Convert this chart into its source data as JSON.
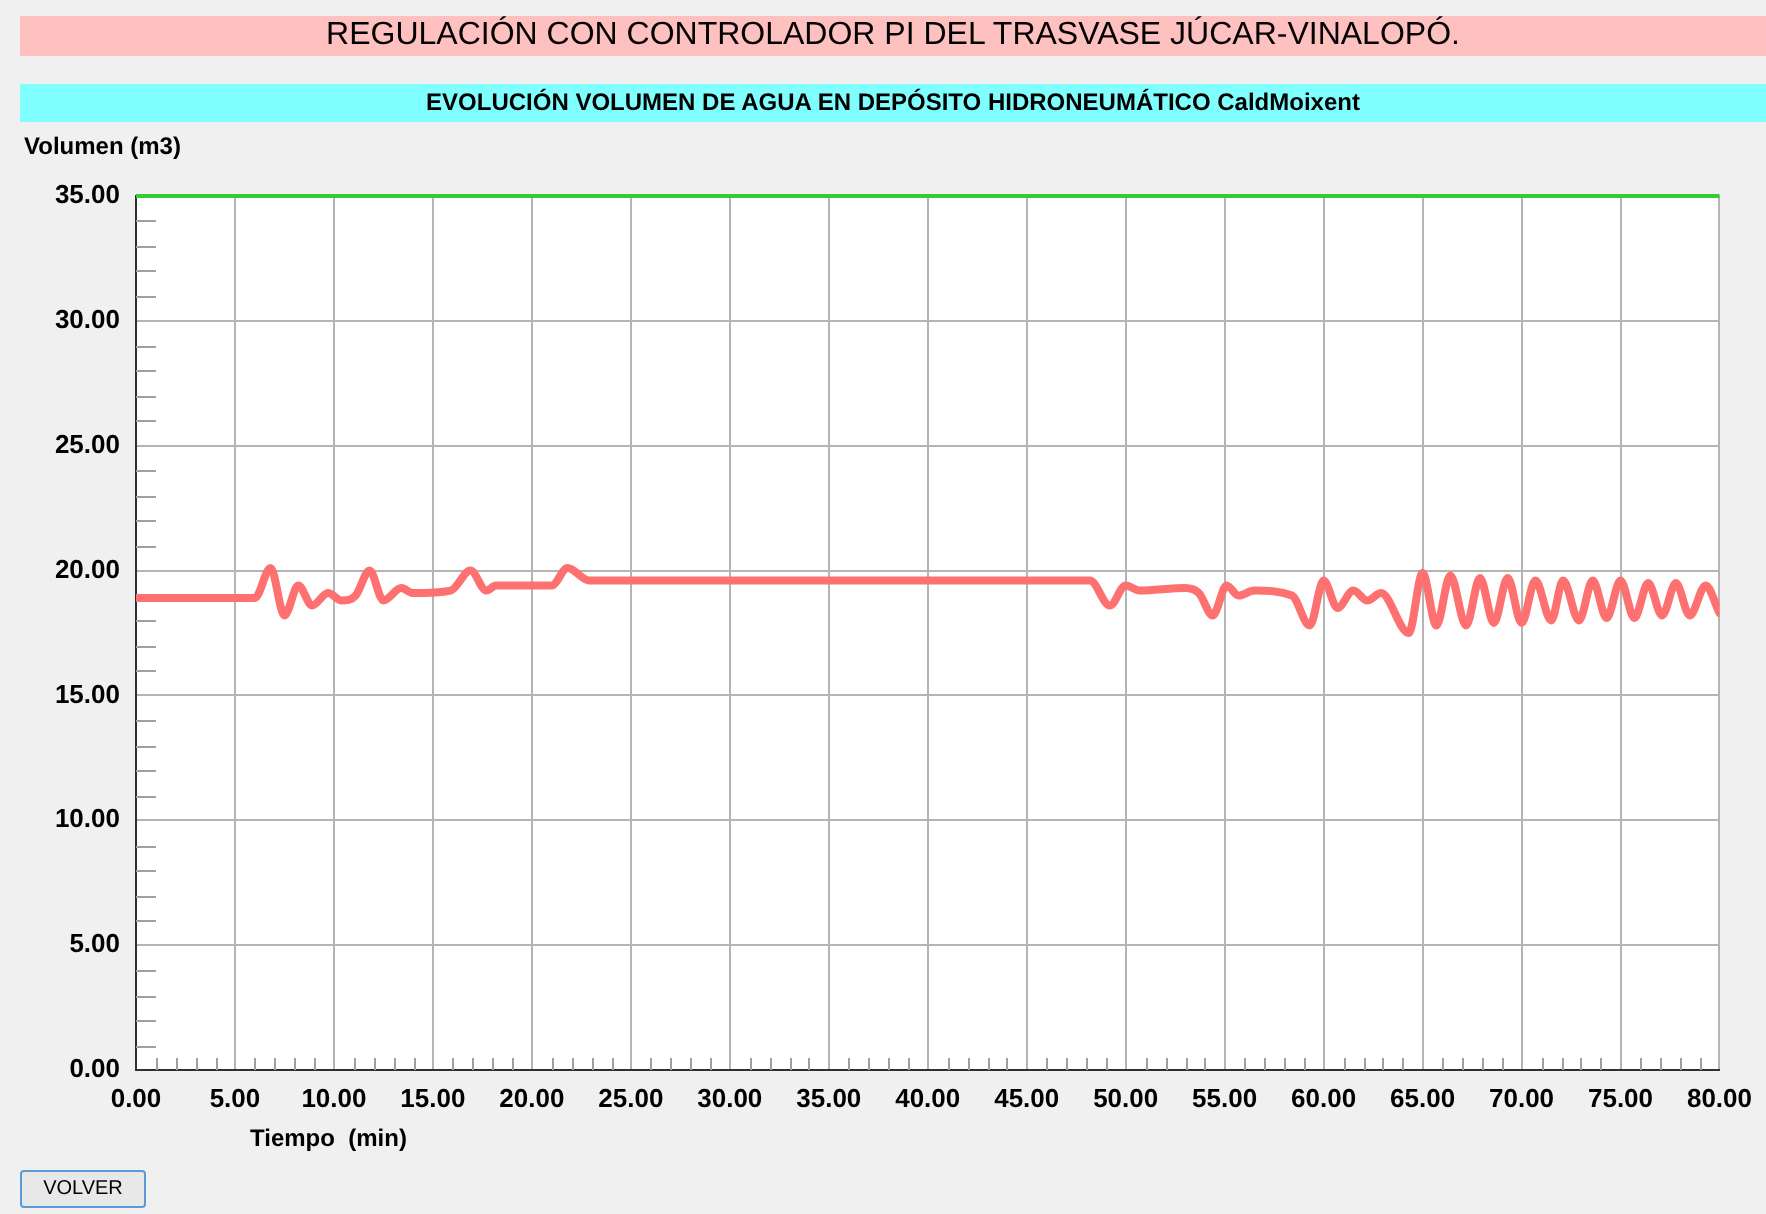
{
  "chart_data": {
    "type": "line",
    "title": "REGULACIÓN CON CONTROLADOR PI DEL TRASVASE JÚCAR-VINALOPÓ.",
    "subtitle": "EVOLUCIÓN VOLUMEN DE AGUA EN DEPÓSITO HIDRONEUMÁTICO CaldMoixent",
    "xlabel": "Tiempo  (min)",
    "ylabel": "Volumen (m3)",
    "annotations": [
      "VOLVER"
    ],
    "x": [
      0,
      6.0,
      6.8,
      7.5,
      8.2,
      8.9,
      9.7,
      10.4,
      11.1,
      11.8,
      12.5,
      13.4,
      14.0,
      15.9,
      16.9,
      17.7,
      18.2,
      21.0,
      21.8,
      22.9,
      48.2,
      49.2,
      50.0,
      50.7,
      53.0,
      53.7,
      54.4,
      55.1,
      55.7,
      56.5,
      58.4,
      59.3,
      60.0,
      60.7,
      61.5,
      62.2,
      62.9,
      64.3,
      65.0,
      65.7,
      66.4,
      67.2,
      67.9,
      68.6,
      69.3,
      70.0,
      70.7,
      71.5,
      72.1,
      72.9,
      73.6,
      74.3,
      75.0,
      75.7,
      76.4,
      77.1,
      77.8,
      78.5,
      79.3,
      80
    ],
    "series": [
      {
        "color": "#ff7070",
        "values": [
          18.9,
          18.9,
          20.1,
          18.2,
          19.4,
          18.6,
          19.1,
          18.8,
          19.0,
          20.0,
          18.8,
          19.3,
          19.1,
          19.2,
          20.0,
          19.2,
          19.4,
          19.4,
          20.1,
          19.6,
          19.6,
          18.6,
          19.4,
          19.2,
          19.3,
          19.1,
          18.2,
          19.4,
          19.0,
          19.2,
          19.0,
          17.8,
          19.6,
          18.5,
          19.2,
          18.8,
          19.1,
          17.5,
          19.9,
          17.8,
          19.8,
          17.8,
          19.7,
          17.9,
          19.7,
          17.9,
          19.6,
          18.0,
          19.6,
          18.0,
          19.6,
          18.1,
          19.6,
          18.1,
          19.5,
          18.2,
          19.5,
          18.2,
          19.4,
          18.3
        ]
      }
    ],
    "xlim": [
      0,
      80
    ],
    "ylim": [
      0,
      35
    ],
    "xticks": [
      {
        "value": 0,
        "label": "0.00"
      },
      {
        "value": 1,
        "label": null
      },
      {
        "value": 2,
        "label": null
      },
      {
        "value": 3,
        "label": null
      },
      {
        "value": 4,
        "label": null
      },
      {
        "value": 5,
        "label": "5.00"
      },
      {
        "value": 6,
        "label": null
      },
      {
        "value": 7,
        "label": null
      },
      {
        "value": 8,
        "label": null
      },
      {
        "value": 9,
        "label": null
      },
      {
        "value": 10,
        "label": "10.00"
      },
      {
        "value": 11,
        "label": null
      },
      {
        "value": 12,
        "label": null
      },
      {
        "value": 13,
        "label": null
      },
      {
        "value": 14,
        "label": null
      },
      {
        "value": 15,
        "label": "15.00"
      },
      {
        "value": 16,
        "label": null
      },
      {
        "value": 17,
        "label": null
      },
      {
        "value": 18,
        "label": null
      },
      {
        "value": 19,
        "label": null
      },
      {
        "value": 20,
        "label": "20.00"
      },
      {
        "value": 21,
        "label": null
      },
      {
        "value": 22,
        "label": null
      },
      {
        "value": 23,
        "label": null
      },
      {
        "value": 24,
        "label": null
      },
      {
        "value": 25,
        "label": "25.00"
      },
      {
        "value": 26,
        "label": null
      },
      {
        "value": 27,
        "label": null
      },
      {
        "value": 28,
        "label": null
      },
      {
        "value": 29,
        "label": null
      },
      {
        "value": 30,
        "label": "30.00"
      },
      {
        "value": 31,
        "label": null
      },
      {
        "value": 32,
        "label": null
      },
      {
        "value": 33,
        "label": null
      },
      {
        "value": 34,
        "label": null
      },
      {
        "value": 35,
        "label": "35.00"
      },
      {
        "value": 36,
        "label": null
      },
      {
        "value": 37,
        "label": null
      },
      {
        "value": 38,
        "label": null
      },
      {
        "value": 39,
        "label": null
      },
      {
        "value": 40,
        "label": "40.00"
      },
      {
        "value": 41,
        "label": null
      },
      {
        "value": 42,
        "label": null
      },
      {
        "value": 43,
        "label": null
      },
      {
        "value": 44,
        "label": null
      },
      {
        "value": 45,
        "label": "45.00"
      },
      {
        "value": 46,
        "label": null
      },
      {
        "value": 47,
        "label": null
      },
      {
        "value": 48,
        "label": null
      },
      {
        "value": 49,
        "label": null
      },
      {
        "value": 50,
        "label": "50.00"
      },
      {
        "value": 51,
        "label": null
      },
      {
        "value": 52,
        "label": null
      },
      {
        "value": 53,
        "label": null
      },
      {
        "value": 54,
        "label": null
      },
      {
        "value": 55,
        "label": "55.00"
      },
      {
        "value": 56,
        "label": null
      },
      {
        "value": 57,
        "label": null
      },
      {
        "value": 58,
        "label": null
      },
      {
        "value": 59,
        "label": null
      },
      {
        "value": 60,
        "label": "60.00"
      },
      {
        "value": 61,
        "label": null
      },
      {
        "value": 62,
        "label": null
      },
      {
        "value": 63,
        "label": null
      },
      {
        "value": 64,
        "label": null
      },
      {
        "value": 65,
        "label": "65.00"
      },
      {
        "value": 66,
        "label": null
      },
      {
        "value": 67,
        "label": null
      },
      {
        "value": 68,
        "label": null
      },
      {
        "value": 69,
        "label": null
      },
      {
        "value": 70,
        "label": "70.00"
      },
      {
        "value": 71,
        "label": null
      },
      {
        "value": 72,
        "label": null
      },
      {
        "value": 73,
        "label": null
      },
      {
        "value": 74,
        "label": null
      },
      {
        "value": 75,
        "label": "75.00"
      },
      {
        "value": 76,
        "label": null
      },
      {
        "value": 77,
        "label": null
      },
      {
        "value": 78,
        "label": null
      },
      {
        "value": 79,
        "label": null
      },
      {
        "value": 80,
        "label": "80.00"
      }
    ],
    "yticks": [
      {
        "value": 0,
        "label": "0.00"
      },
      {
        "value": 1,
        "label": null
      },
      {
        "value": 2,
        "label": null
      },
      {
        "value": 3,
        "label": null
      },
      {
        "value": 4,
        "label": null
      },
      {
        "value": 5,
        "label": "5.00"
      },
      {
        "value": 6,
        "label": null
      },
      {
        "value": 7,
        "label": null
      },
      {
        "value": 8,
        "label": null
      },
      {
        "value": 9,
        "label": null
      },
      {
        "value": 10,
        "label": "10.00"
      },
      {
        "value": 11,
        "label": null
      },
      {
        "value": 12,
        "label": null
      },
      {
        "value": 13,
        "label": null
      },
      {
        "value": 14,
        "label": null
      },
      {
        "value": 15,
        "label": "15.00"
      },
      {
        "value": 16,
        "label": null
      },
      {
        "value": 17,
        "label": null
      },
      {
        "value": 18,
        "label": null
      },
      {
        "value": 19,
        "label": null
      },
      {
        "value": 20,
        "label": "20.00"
      },
      {
        "value": 21,
        "label": null
      },
      {
        "value": 22,
        "label": null
      },
      {
        "value": 23,
        "label": null
      },
      {
        "value": 24,
        "label": null
      },
      {
        "value": 25,
        "label": "25.00"
      },
      {
        "value": 26,
        "label": null
      },
      {
        "value": 27,
        "label": null
      },
      {
        "value": 28,
        "label": null
      },
      {
        "value": 29,
        "label": null
      },
      {
        "value": 30,
        "label": "30.00"
      },
      {
        "value": 31,
        "label": null
      },
      {
        "value": 32,
        "label": null
      },
      {
        "value": 33,
        "label": null
      },
      {
        "value": 34,
        "label": null
      },
      {
        "value": 35,
        "label": "35.00"
      }
    ],
    "ref_lines": [
      {
        "axis": "y",
        "value": 35,
        "color": "#33cc33"
      }
    ],
    "grid": true,
    "legend": false,
    "marker": "none"
  }
}
